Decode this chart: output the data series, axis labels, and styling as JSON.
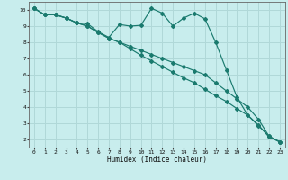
{
  "xlabel": "Humidex (Indice chaleur)",
  "bg_color": "#c8eded",
  "grid_color": "#b0d8d8",
  "line_color": "#1a7a6e",
  "xlim": [
    -0.5,
    23.5
  ],
  "ylim": [
    1.5,
    10.5
  ],
  "xticks": [
    0,
    1,
    2,
    3,
    4,
    5,
    6,
    7,
    8,
    9,
    10,
    11,
    12,
    13,
    14,
    15,
    16,
    17,
    18,
    19,
    20,
    21,
    22,
    23
  ],
  "yticks": [
    2,
    3,
    4,
    5,
    6,
    7,
    8,
    9,
    10
  ],
  "line1_x": [
    0,
    1,
    2,
    3,
    4,
    5,
    6,
    7,
    8,
    9,
    10,
    11,
    12,
    13,
    14,
    15,
    16,
    17,
    18,
    19,
    20,
    21,
    22,
    23
  ],
  "line1_y": [
    10.1,
    9.7,
    9.7,
    9.5,
    9.2,
    9.15,
    8.65,
    8.3,
    9.1,
    9.0,
    9.05,
    10.1,
    9.8,
    9.0,
    9.5,
    9.8,
    9.45,
    8.0,
    6.3,
    4.6,
    3.5,
    2.9,
    2.15,
    1.85
  ],
  "line2_x": [
    0,
    1,
    2,
    3,
    4,
    5,
    6,
    7,
    8,
    9,
    10,
    11,
    12,
    13,
    14,
    15,
    16,
    17,
    18,
    19,
    20,
    21,
    22,
    23
  ],
  "line2_y": [
    10.1,
    9.7,
    9.7,
    9.5,
    9.2,
    9.0,
    8.6,
    8.25,
    8.0,
    7.75,
    7.5,
    7.25,
    7.0,
    6.75,
    6.5,
    6.25,
    6.0,
    5.5,
    5.0,
    4.5,
    4.0,
    3.25,
    2.2,
    1.85
  ],
  "line3_x": [
    0,
    1,
    2,
    3,
    4,
    5,
    6,
    7,
    8,
    9,
    10,
    11,
    12,
    13,
    14,
    15,
    16,
    17,
    18,
    19,
    20,
    21,
    22,
    23
  ],
  "line3_y": [
    10.1,
    9.7,
    9.7,
    9.5,
    9.2,
    9.0,
    8.6,
    8.25,
    8.0,
    7.6,
    7.2,
    6.85,
    6.5,
    6.15,
    5.8,
    5.5,
    5.1,
    4.7,
    4.35,
    3.9,
    3.5,
    2.85,
    2.2,
    1.85
  ]
}
